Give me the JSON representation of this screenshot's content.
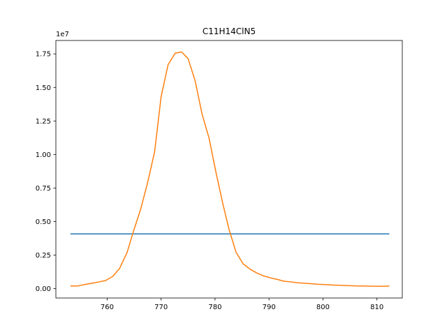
{
  "chart_data": {
    "type": "line",
    "title": "C11H14ClN5",
    "xlabel": "",
    "ylabel": "",
    "y_offset_label": "1e7",
    "xlim": [
      750.5,
      814.7
    ],
    "ylim": [
      -0.07,
      1.85
    ],
    "x_ticks": [
      760,
      770,
      780,
      790,
      800,
      810
    ],
    "y_ticks": [
      0.0,
      0.25,
      0.5,
      0.75,
      1.0,
      1.25,
      1.5,
      1.75
    ],
    "x_tick_labels": [
      "760",
      "770",
      "780",
      "790",
      "800",
      "810"
    ],
    "y_tick_labels": [
      "0.00",
      "0.25",
      "0.50",
      "0.75",
      "1.00",
      "1.25",
      "1.50",
      "1.75"
    ],
    "grid": false,
    "series": [
      {
        "color": "#1f77b4",
        "x": [
          753.2,
          812.3
        ],
        "y": [
          0.408,
          0.408
        ]
      },
      {
        "color": "#ff7f0e",
        "x": [
          753.2,
          754.6,
          755.8,
          757.1,
          758.5,
          759.7,
          761.0,
          762.3,
          763.7,
          764.9,
          766.2,
          767.5,
          768.8,
          770.0,
          771.3,
          772.6,
          773.8,
          775.0,
          776.3,
          777.6,
          778.9,
          780.1,
          781.4,
          782.6,
          783.9,
          785.2,
          786.5,
          787.8,
          789.0,
          790.3,
          791.6,
          792.8,
          794.1,
          795.4,
          796.7,
          797.9,
          799.2,
          800.5,
          801.7,
          803.0,
          804.3,
          805.5,
          806.8,
          808.1,
          809.4,
          810.6,
          811.3,
          812.3
        ],
        "y": [
          0.02,
          0.02,
          0.03,
          0.04,
          0.05,
          0.06,
          0.09,
          0.15,
          0.27,
          0.43,
          0.59,
          0.79,
          1.02,
          1.43,
          1.67,
          1.755,
          1.765,
          1.715,
          1.55,
          1.3,
          1.12,
          0.88,
          0.64,
          0.44,
          0.27,
          0.185,
          0.145,
          0.115,
          0.095,
          0.08,
          0.068,
          0.055,
          0.05,
          0.043,
          0.04,
          0.036,
          0.032,
          0.03,
          0.027,
          0.025,
          0.023,
          0.021,
          0.02,
          0.019,
          0.018,
          0.018,
          0.017,
          0.02
        ]
      }
    ]
  }
}
